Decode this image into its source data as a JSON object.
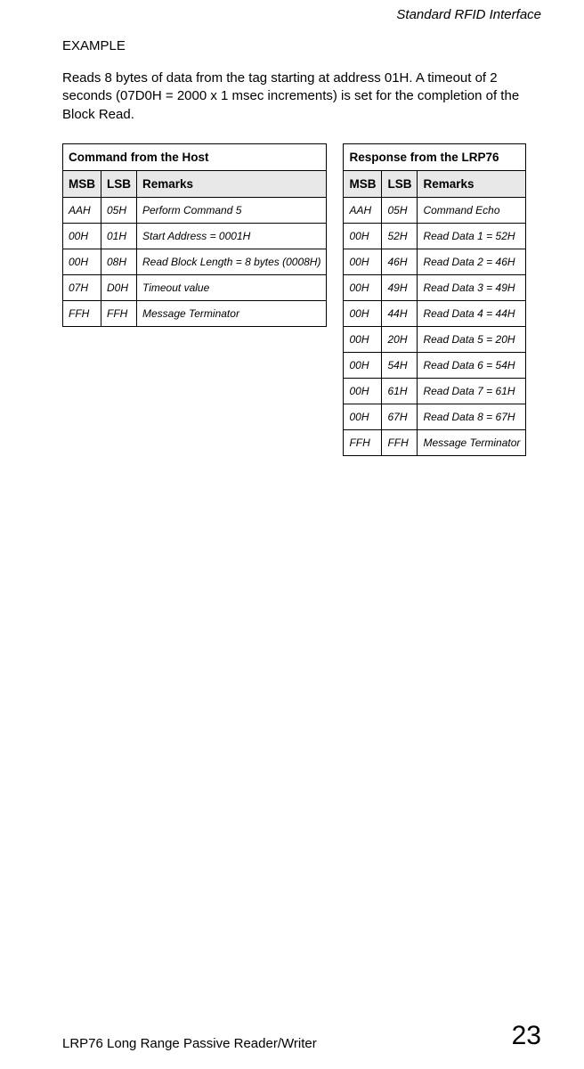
{
  "header": {
    "running": "Standard RFID Interface"
  },
  "example_label": "EXAMPLE",
  "body_text": "Reads 8 bytes of data from the tag starting at address 01H. A timeout of 2 seconds (07D0H = 2000 x 1 msec increments) is set for the completion of the Block Read.",
  "left_table": {
    "title": "Command from the Host",
    "columns": {
      "c0": "MSB",
      "c1": "LSB",
      "c2": "Remarks"
    },
    "rows": [
      {
        "msb": "AAH",
        "lsb": "05H",
        "rem": "Perform Command 5"
      },
      {
        "msb": "00H",
        "lsb": "01H",
        "rem": "Start Address = 0001H"
      },
      {
        "msb": "00H",
        "lsb": "08H",
        "rem": "Read Block Length = 8 bytes (0008H)"
      },
      {
        "msb": "07H",
        "lsb": "D0H",
        "rem": "Timeout value"
      },
      {
        "msb": "FFH",
        "lsb": "FFH",
        "rem": "Message Terminator"
      }
    ]
  },
  "right_table": {
    "title": "Response from the LRP76",
    "columns": {
      "c0": "MSB",
      "c1": "LSB",
      "c2": "Remarks"
    },
    "rows": [
      {
        "msb": "AAH",
        "lsb": "05H",
        "rem": "Command Echo"
      },
      {
        "msb": "00H",
        "lsb": "52H",
        "rem": "Read Data 1 = 52H"
      },
      {
        "msb": "00H",
        "lsb": "46H",
        "rem": "Read Data 2 = 46H"
      },
      {
        "msb": "00H",
        "lsb": "49H",
        "rem": "Read Data 3 = 49H"
      },
      {
        "msb": "00H",
        "lsb": "44H",
        "rem": "Read Data 4 = 44H"
      },
      {
        "msb": "00H",
        "lsb": "20H",
        "rem": "Read Data 5 = 20H"
      },
      {
        "msb": "00H",
        "lsb": "54H",
        "rem": "Read Data 6 = 54H"
      },
      {
        "msb": "00H",
        "lsb": "61H",
        "rem": "Read Data 7 = 61H"
      },
      {
        "msb": "00H",
        "lsb": "67H",
        "rem": "Read Data 8 = 67H"
      },
      {
        "msb": "FFH",
        "lsb": "FFH",
        "rem": "Message Terminator"
      }
    ]
  },
  "footer": {
    "left": "LRP76 Long Range Passive Reader/Writer",
    "page": "23"
  }
}
